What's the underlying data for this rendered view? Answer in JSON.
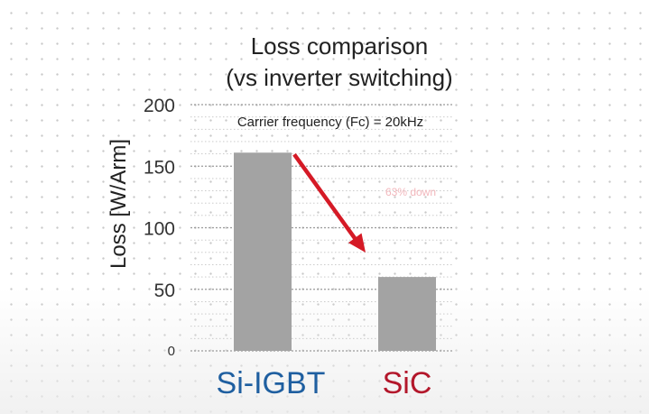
{
  "chart_data": {
    "type": "bar",
    "title": "Loss comparison",
    "subtitle": "(vs inverter switching)",
    "ylabel": "Loss [W/Arm]",
    "xlabel": "",
    "categories": [
      "Si-IGBT",
      "SiC"
    ],
    "category_colors": [
      "#1f5fa0",
      "#b3172b"
    ],
    "values": [
      161,
      60
    ],
    "ylim": [
      0,
      200
    ],
    "yticks": [
      0,
      50,
      100,
      150,
      200
    ],
    "bar_color": "#a3a3a3",
    "grid": "dotted horizontal",
    "annotations": [
      {
        "text": "Carrier frequency (Fc) = 20kHz"
      },
      {
        "text": "63% down",
        "color": "#f2b7bc"
      }
    ],
    "arrow": {
      "from": "Si-IGBT",
      "to": "SiC",
      "color": "#d51a26"
    }
  }
}
